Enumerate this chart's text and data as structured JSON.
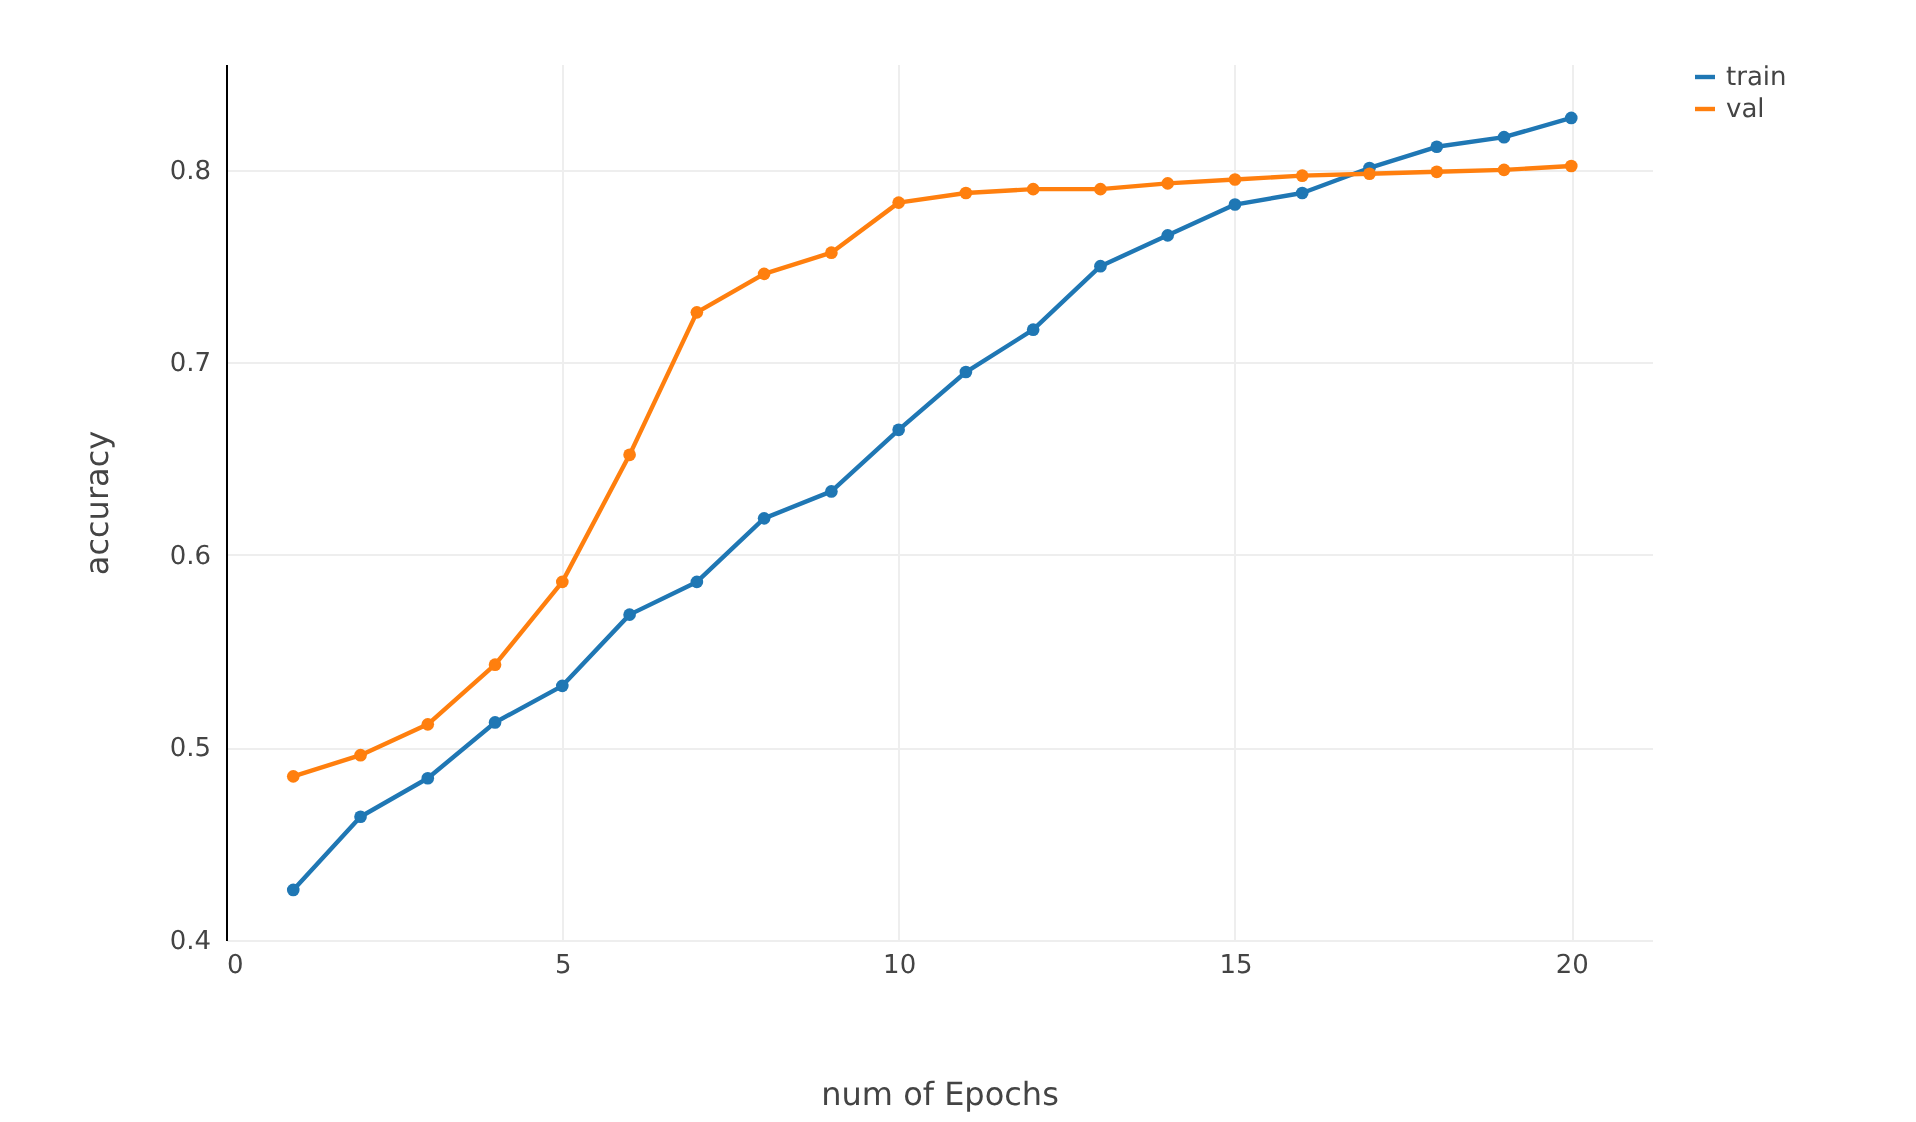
{
  "chart_data": {
    "type": "line",
    "xlabel": "num of Epochs",
    "ylabel": "accuracy",
    "x": [
      1,
      2,
      3,
      4,
      5,
      6,
      7,
      8,
      9,
      10,
      11,
      12,
      13,
      14,
      15,
      16,
      17,
      18,
      19,
      20
    ],
    "series": [
      {
        "name": "train",
        "color": "#1f77b4",
        "values": [
          0.426,
          0.464,
          0.484,
          0.513,
          0.532,
          0.569,
          0.586,
          0.619,
          0.633,
          0.665,
          0.695,
          0.717,
          0.75,
          0.766,
          0.782,
          0.788,
          0.801,
          0.812,
          0.817,
          0.827
        ]
      },
      {
        "name": "val",
        "color": "#ff7f0e",
        "values": [
          0.485,
          0.496,
          0.512,
          0.543,
          0.586,
          0.652,
          0.726,
          0.746,
          0.757,
          0.783,
          0.788,
          0.79,
          0.79,
          0.793,
          0.795,
          0.797,
          0.798,
          0.799,
          0.8,
          0.802
        ]
      }
    ],
    "xlim": [
      0,
      21.2
    ],
    "ylim": [
      0.4,
      0.855
    ],
    "xticks": [
      0,
      5,
      10,
      15,
      20
    ],
    "yticks": [
      0.4,
      0.5,
      0.6,
      0.7,
      0.8
    ],
    "grid": true,
    "legend": "top right",
    "marker": "circle",
    "line_style": "solid"
  }
}
